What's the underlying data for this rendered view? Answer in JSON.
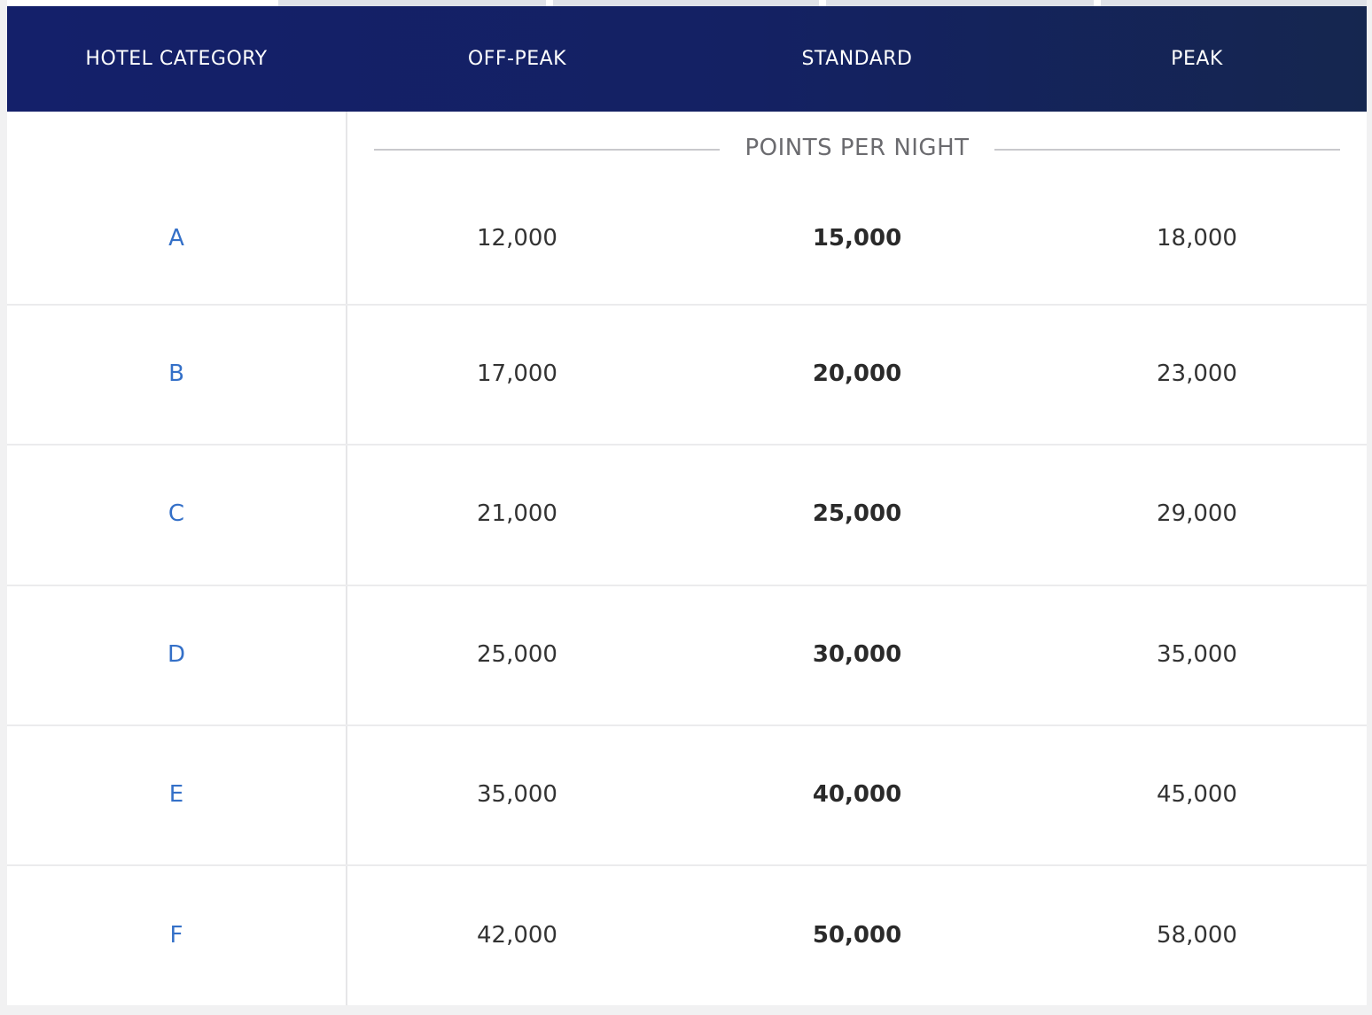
{
  "table": {
    "headers": {
      "category": "HOTEL CATEGORY",
      "off_peak": "OFF-PEAK",
      "standard": "STANDARD",
      "peak": "PEAK"
    },
    "points_label": "POINTS PER NIGHT",
    "rows": [
      {
        "category": "A",
        "off_peak": "12,000",
        "standard": "15,000",
        "peak": "18,000"
      },
      {
        "category": "B",
        "off_peak": "17,000",
        "standard": "20,000",
        "peak": "23,000"
      },
      {
        "category": "C",
        "off_peak": "21,000",
        "standard": "25,000",
        "peak": "29,000"
      },
      {
        "category": "D",
        "off_peak": "25,000",
        "standard": "30,000",
        "peak": "35,000"
      },
      {
        "category": "E",
        "off_peak": "35,000",
        "standard": "40,000",
        "peak": "45,000"
      },
      {
        "category": "F",
        "off_peak": "42,000",
        "standard": "50,000",
        "peak": "58,000"
      }
    ]
  },
  "colors": {
    "header_bg": "#14206a",
    "header_text": "#ffffff",
    "category_text": "#3470c8",
    "value_text": "#333333",
    "points_label_text": "#6b6b6f"
  }
}
